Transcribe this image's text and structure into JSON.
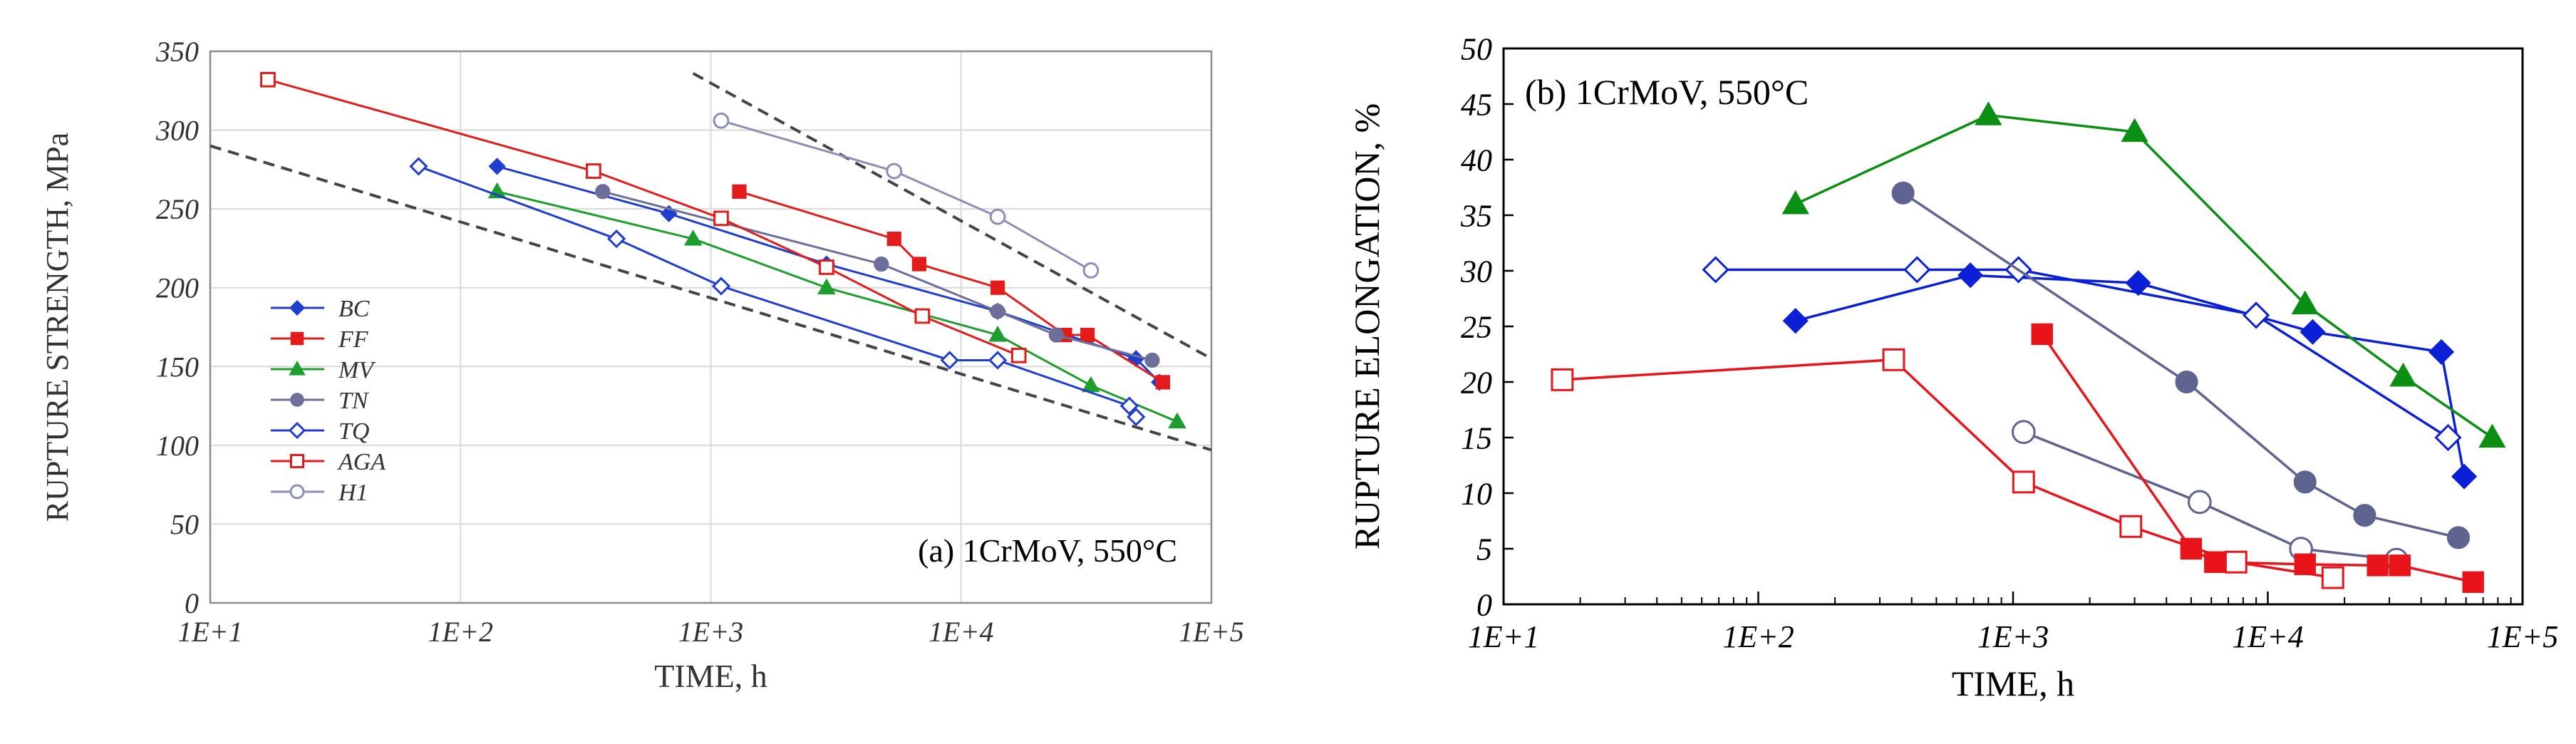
{
  "chart_data": [
    {
      "type": "line",
      "annotation": "(a) 1CrMoV, 550°C",
      "xlabel": "TIME, h",
      "ylabel": "RUPTURE STRENGTH, MPa",
      "xscale": "log",
      "xlim": [
        10,
        100000
      ],
      "ylim": [
        0,
        350
      ],
      "xticks": [
        "1E+1",
        "1E+2",
        "1E+3",
        "1E+4",
        "1E+5"
      ],
      "yticks": [
        "0",
        "50",
        "100",
        "150",
        "200",
        "250",
        "300",
        "350"
      ],
      "grid": true,
      "legend": "left",
      "series": [
        {
          "name": "BC",
          "color": "#1f3ecf",
          "marker": "diamond",
          "filled": true,
          "x": [
            140,
            680,
            2900,
            14000,
            50000,
            62000
          ],
          "y": [
            277,
            247,
            215,
            185,
            155,
            140
          ]
        },
        {
          "name": "FF",
          "color": "#e21b1b",
          "marker": "square",
          "filled": true,
          "x": [
            1300,
            5400,
            6800,
            14000,
            26000,
            32000,
            64000
          ],
          "y": [
            261,
            231,
            215,
            200,
            170,
            170,
            140
          ]
        },
        {
          "name": "MV",
          "color": "#1e9e2e",
          "marker": "triangle",
          "filled": true,
          "x": [
            140,
            850,
            2900,
            14000,
            33000,
            73000
          ],
          "y": [
            261,
            231,
            200,
            170,
            138,
            115
          ]
        },
        {
          "name": "TN",
          "color": "#6b6f9a",
          "marker": "circle",
          "filled": true,
          "x": [
            370,
            4800,
            14000,
            24000,
            58000
          ],
          "y": [
            261,
            215,
            185,
            170,
            154
          ]
        },
        {
          "name": "TQ",
          "color": "#1f3ecf",
          "marker": "diamond",
          "filled": false,
          "x": [
            68,
            420,
            1100,
            9000,
            14000,
            47000,
            50000
          ],
          "y": [
            277,
            231,
            201,
            154,
            154,
            125,
            118
          ]
        },
        {
          "name": "AGA",
          "color": "#e21b1b",
          "marker": "square",
          "filled": false,
          "x": [
            17,
            340,
            1100,
            2900,
            7000,
            17000
          ],
          "y": [
            332,
            274,
            244,
            213,
            182,
            157
          ]
        },
        {
          "name": "H1",
          "color": "#8a8fb5",
          "marker": "circle",
          "filled": false,
          "x": [
            1100,
            5400,
            14000,
            33000
          ],
          "y": [
            306,
            274,
            245,
            211
          ]
        }
      ],
      "reference_lines": [
        {
          "style": "dashed",
          "x": [
            10,
            100000
          ],
          "y": [
            290,
            97
          ]
        },
        {
          "style": "dashed",
          "x": [
            850,
            100000
          ],
          "y": [
            336,
            155
          ]
        }
      ]
    },
    {
      "type": "line",
      "annotation": "(b) 1CrMoV, 550°C",
      "xlabel": "TIME, h",
      "ylabel": "RUPTURE ELONGATION, %",
      "xscale": "log",
      "xlim": [
        10,
        100000
      ],
      "ylim": [
        0,
        50
      ],
      "xticks": [
        "1E+1",
        "1E+2",
        "1E+3",
        "1E+4",
        "1E+5"
      ],
      "yticks": [
        "0",
        "5",
        "10",
        "15",
        "20",
        "25",
        "30",
        "35",
        "40",
        "45",
        "50"
      ],
      "grid": false,
      "series": [
        {
          "color": "#0b1fd6",
          "marker": "diamond",
          "filled": true,
          "x": [
            140,
            680,
            3100,
            15000,
            48000,
            59000
          ],
          "y": [
            25.5,
            29.6,
            28.9,
            24.5,
            22.7,
            11.5
          ]
        },
        {
          "color": "#0b1fd6",
          "marker": "diamond",
          "filled": false,
          "x": [
            68,
            420,
            1050,
            9000,
            51000
          ],
          "y": [
            30.1,
            30.1,
            30.1,
            26.0,
            15.0
          ]
        },
        {
          "color": "#0a8f12",
          "marker": "triangle",
          "filled": true,
          "x": [
            140,
            800,
            3000,
            14000,
            34000,
            76000
          ],
          "y": [
            36.0,
            44.0,
            42.5,
            27.0,
            20.5,
            15.0
          ]
        },
        {
          "color": "#5e6390",
          "marker": "circle",
          "filled": true,
          "x": [
            370,
            4800,
            14000,
            24000,
            56000
          ],
          "y": [
            37.0,
            20.0,
            11.0,
            8.0,
            6.0
          ]
        },
        {
          "color": "#5e6390",
          "marker": "circle",
          "filled": false,
          "x": [
            1100,
            5400,
            13500,
            32000
          ],
          "y": [
            15.5,
            9.2,
            5.0,
            4.0
          ]
        },
        {
          "color": "#e8141a",
          "marker": "square",
          "filled": true,
          "x": [
            1300,
            5000,
            6200,
            14000,
            27000,
            33000,
            64000
          ],
          "y": [
            24.3,
            5.0,
            3.8,
            3.6,
            3.5,
            3.5,
            2.0
          ]
        },
        {
          "color": "#e8141a",
          "marker": "square",
          "filled": false,
          "x": [
            17,
            340,
            1100,
            2900,
            7500,
            18000
          ],
          "y": [
            20.2,
            22.0,
            11.0,
            7.0,
            3.8,
            2.4
          ]
        }
      ]
    }
  ]
}
